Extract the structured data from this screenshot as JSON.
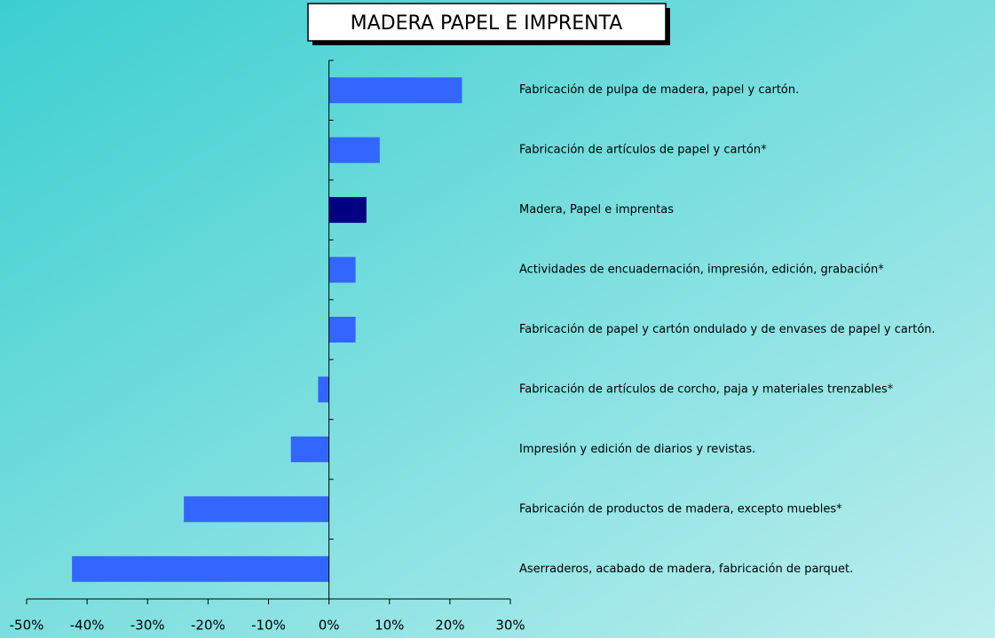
{
  "chart_data": {
    "type": "barh",
    "title": "MADERA PAPEL E IMPRENTA",
    "categories": [
      "Fabricación de pulpa de madera, papel y cartón.",
      "Fabricación de artículos de papel y cartón*",
      "Madera, Papel e imprentas",
      "Actividades de encuadernación, impresión, edición, grabación*",
      "Fabricación de papel y cartón ondulado y de envases de papel y cartón.",
      "Fabricación de artículos de corcho, paja y materiales trenzables*",
      "Impresión y edición de diarios y revistas.",
      "Fabricación de productos de madera, excepto muebles*",
      "Aserraderos, acabado de madera, fabricación de parquet."
    ],
    "values": [
      22,
      8.4,
      6.2,
      4.4,
      4.4,
      -1.8,
      -6.3,
      -24,
      -42.5
    ],
    "colors": [
      "#3366ff",
      "#3366ff",
      "#000080",
      "#3366ff",
      "#3366ff",
      "#3366ff",
      "#3366ff",
      "#3366ff",
      "#3366ff"
    ],
    "xlim": [
      -50,
      30
    ],
    "xticks": [
      {
        "value": -50,
        "label": "-50%"
      },
      {
        "value": -40,
        "label": "-40%"
      },
      {
        "value": -30,
        "label": "-30%"
      },
      {
        "value": -20,
        "label": "-20%"
      },
      {
        "value": -10,
        "label": "-10%"
      },
      {
        "value": 0,
        "label": "0%"
      },
      {
        "value": 10,
        "label": "10%"
      },
      {
        "value": 20,
        "label": "20%"
      },
      {
        "value": 30,
        "label": "30%"
      }
    ]
  }
}
